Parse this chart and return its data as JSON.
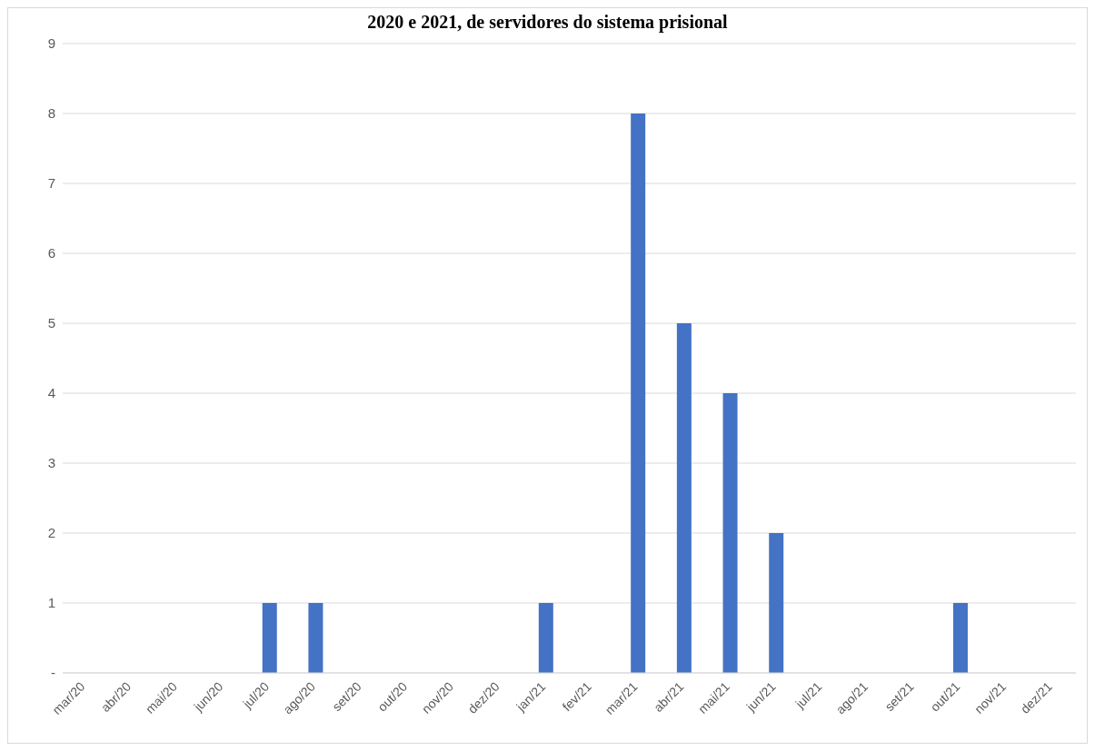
{
  "chart_data": {
    "type": "bar",
    "title": "2020 e 2021, de servidores do sistema prisional",
    "categories": [
      "mar/20",
      "abr/20",
      "mai/20",
      "jun/20",
      "jul/20",
      "ago/20",
      "set/20",
      "out/20",
      "nov/20",
      "dez/20",
      "jan/21",
      "fev/21",
      "mar/21",
      "abr/21",
      "mai/21",
      "jun/21",
      "jul/21",
      "ago/21",
      "set/21",
      "out/21",
      "nov/21",
      "dez/21"
    ],
    "values": [
      0,
      0,
      0,
      0,
      1,
      1,
      0,
      0,
      0,
      0,
      1,
      0,
      8,
      5,
      4,
      2,
      0,
      0,
      0,
      1,
      0,
      0
    ],
    "color": "#4472c4",
    "ylim": [
      0,
      9
    ],
    "yticks": [
      {
        "value": 0,
        "label": "-"
      },
      1,
      2,
      3,
      4,
      5,
      6,
      7,
      8,
      9
    ],
    "grid": "y"
  }
}
